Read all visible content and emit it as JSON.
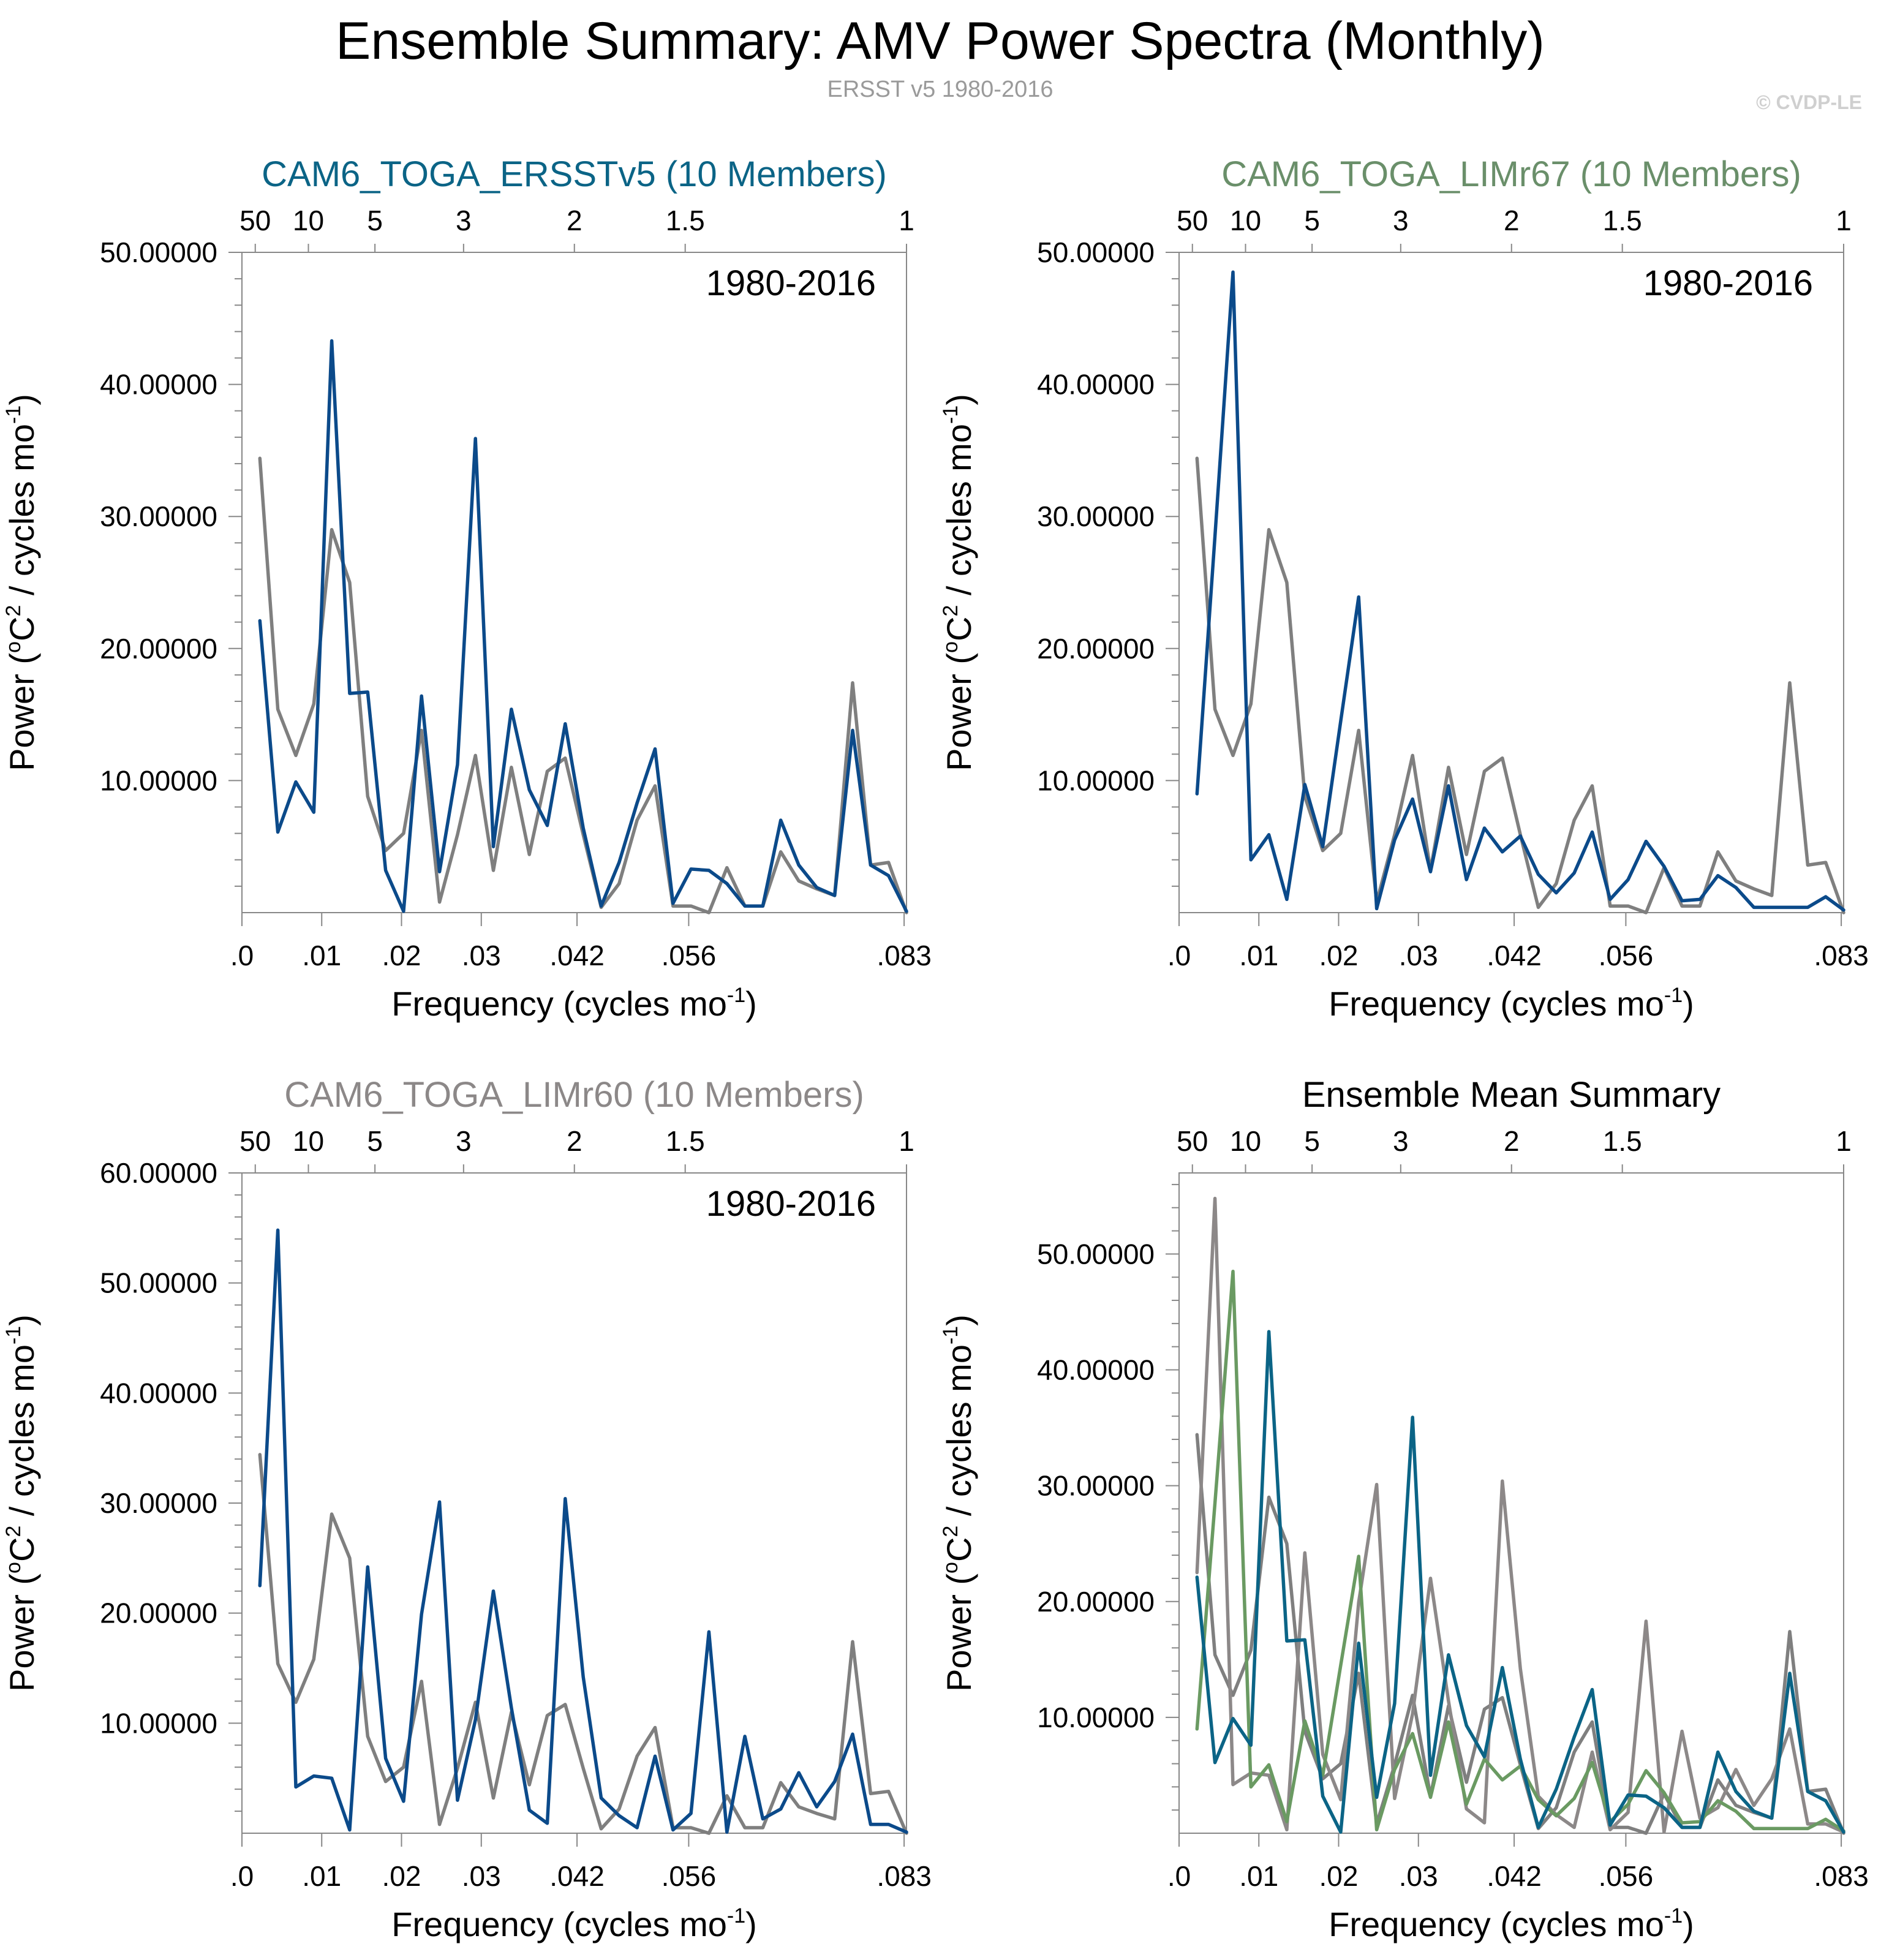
{
  "figure": {
    "title": "Ensemble Summary: AMV Power Spectra (Monthly)",
    "subtitle": "ERSST v5 1980-2016",
    "copyright": "© CVDP-LE"
  },
  "colors": {
    "obs": "#7f7f7f",
    "ersstv5": "#0b4a8a",
    "ersstv5_title": "#0b6486",
    "limr67_title": "#6a8f6a",
    "limr60_title": "#8c8888",
    "mean_ersst": "#0b6486",
    "mean_limr67": "#6a9a62",
    "mean_limr60": "#8c8888",
    "mean_obs": "#7f7f7f",
    "black": "#000000"
  },
  "chart_data": [
    {
      "id": "ersstv5",
      "type": "line",
      "title": "CAM6_TOGA_ERSSTv5 (10 Members)",
      "title_color_key": "ersstv5_title",
      "period_label": "1980-2016",
      "xlabel": "Frequency (cycles mo",
      "xlabel_sup": "-1",
      "xlabel_end": ")",
      "ylabel": "Power (",
      "ylabel_sup1": "o",
      "ylabel_mid": "C",
      "ylabel_sup2": "2",
      "ylabel_mid2": " / cycles mo",
      "ylabel_sup3": "-1",
      "ylabel_end": ")",
      "xlim": [
        0,
        0.0833
      ],
      "ylim": [
        0,
        50
      ],
      "yticks": [
        10,
        20,
        30,
        40,
        50
      ],
      "yticks_labels": [
        "10.00000",
        "20.00000",
        "30.00000",
        "40.00000",
        "50.00000"
      ],
      "xticks": [
        0,
        0.01,
        0.02,
        0.03,
        0.042,
        0.056,
        0.083
      ],
      "xticks_labels": [
        ".0",
        ".01",
        ".02",
        ".03",
        ".042",
        ".056",
        ".083"
      ],
      "top_ticks": [
        0.00167,
        0.00833,
        0.01667,
        0.02778,
        0.04167,
        0.05556,
        0.0833
      ],
      "top_ticks_labels": [
        "50",
        "10",
        "5",
        "3",
        "2",
        "1.5",
        "1"
      ],
      "series": [
        {
          "name": "ERSST v5",
          "color_key": "obs",
          "values": [
            34.4,
            15.4,
            11.9,
            15.8,
            29.0,
            25.0,
            8.8,
            4.7,
            6.0,
            13.8,
            0.8,
            5.9,
            11.9,
            3.2,
            11.0,
            4.4,
            10.7,
            11.7,
            5.9,
            0.4,
            2.2,
            7.0,
            9.6,
            0.5,
            0.5,
            0.0,
            3.4,
            0.5,
            0.5,
            4.6,
            2.4,
            1.8,
            1.3,
            17.4,
            3.6,
            3.8,
            0.0
          ]
        },
        {
          "name": "CAM6_TOGA_ERSSTv5",
          "color_key": "ersstv5",
          "values": [
            22.1,
            6.1,
            9.9,
            7.6,
            43.3,
            16.6,
            16.7,
            3.2,
            0.1,
            16.4,
            3.1,
            11.2,
            35.9,
            5.0,
            15.4,
            9.3,
            6.6,
            14.3,
            6.4,
            0.5,
            3.8,
            8.3,
            12.4,
            0.7,
            3.3,
            3.2,
            2.2,
            0.5,
            0.5,
            7.0,
            3.6,
            1.9,
            1.3,
            13.8,
            3.6,
            2.8,
            0.1
          ]
        }
      ]
    },
    {
      "id": "limr67",
      "type": "line",
      "title": "CAM6_TOGA_LIMr67 (10 Members)",
      "title_color_key": "limr67_title",
      "period_label": "1980-2016",
      "xlabel": "Frequency (cycles mo",
      "xlabel_sup": "-1",
      "xlabel_end": ")",
      "ylabel": "Power (",
      "ylabel_sup1": "o",
      "ylabel_mid": "C",
      "ylabel_sup2": "2",
      "ylabel_mid2": " / cycles mo",
      "ylabel_sup3": "-1",
      "ylabel_end": ")",
      "xlim": [
        0,
        0.0833
      ],
      "ylim": [
        0,
        50
      ],
      "yticks": [
        10,
        20,
        30,
        40,
        50
      ],
      "yticks_labels": [
        "10.00000",
        "20.00000",
        "30.00000",
        "40.00000",
        "50.00000"
      ],
      "xticks": [
        0,
        0.01,
        0.02,
        0.03,
        0.042,
        0.056,
        0.083
      ],
      "xticks_labels": [
        ".0",
        ".01",
        ".02",
        ".03",
        ".042",
        ".056",
        ".083"
      ],
      "top_ticks": [
        0.00167,
        0.00833,
        0.01667,
        0.02778,
        0.04167,
        0.05556,
        0.0833
      ],
      "top_ticks_labels": [
        "50",
        "10",
        "5",
        "3",
        "2",
        "1.5",
        "1"
      ],
      "series": [
        {
          "name": "ERSST v5",
          "color_key": "obs",
          "values": [
            34.4,
            15.4,
            11.9,
            15.8,
            29.0,
            25.0,
            8.8,
            4.7,
            6.0,
            13.8,
            0.8,
            5.9,
            11.9,
            3.2,
            11.0,
            4.4,
            10.7,
            11.7,
            5.9,
            0.4,
            2.2,
            7.0,
            9.6,
            0.5,
            0.5,
            0.0,
            3.4,
            0.5,
            0.5,
            4.6,
            2.4,
            1.8,
            1.3,
            17.4,
            3.6,
            3.8,
            0.0
          ]
        },
        {
          "name": "CAM6_TOGA_LIMr67",
          "color_key": "ersstv5",
          "values": [
            9.0,
            28.5,
            48.5,
            4.0,
            5.9,
            1.0,
            9.7,
            5.0,
            14.5,
            23.9,
            0.3,
            5.5,
            8.6,
            3.1,
            9.6,
            2.5,
            6.4,
            4.6,
            5.8,
            2.9,
            1.5,
            3.0,
            6.1,
            1.0,
            2.5,
            5.4,
            3.5,
            0.9,
            1.0,
            2.8,
            1.9,
            0.4,
            0.4,
            0.4,
            0.4,
            1.2,
            0.2
          ]
        }
      ]
    },
    {
      "id": "limr60",
      "type": "line",
      "title": "CAM6_TOGA_LIMr60 (10 Members)",
      "title_color_key": "limr60_title",
      "period_label": "1980-2016",
      "xlabel": "Frequency (cycles mo",
      "xlabel_sup": "-1",
      "xlabel_end": ")",
      "ylabel": "Power (",
      "ylabel_sup1": "o",
      "ylabel_mid": "C",
      "ylabel_sup2": "2",
      "ylabel_mid2": " / cycles mo",
      "ylabel_sup3": "-1",
      "ylabel_end": ")",
      "xlim": [
        0,
        0.0833
      ],
      "ylim": [
        0,
        60
      ],
      "yticks": [
        10,
        20,
        30,
        40,
        50,
        60
      ],
      "yticks_labels": [
        "10.00000",
        "20.00000",
        "30.00000",
        "40.00000",
        "50.00000",
        "60.00000"
      ],
      "xticks": [
        0,
        0.01,
        0.02,
        0.03,
        0.042,
        0.056,
        0.083
      ],
      "xticks_labels": [
        ".0",
        ".01",
        ".02",
        ".03",
        ".042",
        ".056",
        ".083"
      ],
      "top_ticks": [
        0.00167,
        0.00833,
        0.01667,
        0.02778,
        0.04167,
        0.05556,
        0.0833
      ],
      "top_ticks_labels": [
        "50",
        "10",
        "5",
        "3",
        "2",
        "1.5",
        "1"
      ],
      "series": [
        {
          "name": "ERSST v5",
          "color_key": "obs",
          "values": [
            34.4,
            15.4,
            11.9,
            15.8,
            29.0,
            25.0,
            8.8,
            4.7,
            6.0,
            13.8,
            0.8,
            5.9,
            11.9,
            3.2,
            11.0,
            4.4,
            10.7,
            11.7,
            5.9,
            0.4,
            2.2,
            7.0,
            9.6,
            0.5,
            0.5,
            0.0,
            3.4,
            0.5,
            0.5,
            4.6,
            2.4,
            1.8,
            1.3,
            17.4,
            3.6,
            3.8,
            0.0
          ]
        },
        {
          "name": "CAM6_TOGA_LIMr60",
          "color_key": "ersstv5",
          "values": [
            22.5,
            54.8,
            4.2,
            5.2,
            5.0,
            0.3,
            24.2,
            6.8,
            2.9,
            19.9,
            30.1,
            3.0,
            10.3,
            22.0,
            11.4,
            2.1,
            0.9,
            30.4,
            14.2,
            3.2,
            1.6,
            0.5,
            7.0,
            0.3,
            1.8,
            18.3,
            0.1,
            8.8,
            1.3,
            2.2,
            5.5,
            2.4,
            4.7,
            9.0,
            0.8,
            0.8,
            0.1
          ]
        }
      ]
    },
    {
      "id": "ensmean",
      "type": "line",
      "title": "Ensemble Mean Summary",
      "title_color_key": "black",
      "period_label": "",
      "xlabel": "Frequency (cycles mo",
      "xlabel_sup": "-1",
      "xlabel_end": ")",
      "ylabel": "Power (",
      "ylabel_sup1": "o",
      "ylabel_mid": "C",
      "ylabel_sup2": "2",
      "ylabel_mid2": " / cycles mo",
      "ylabel_sup3": "-1",
      "ylabel_end": ")",
      "xlim": [
        0,
        0.0833
      ],
      "ylim": [
        0,
        57
      ],
      "yticks": [
        10,
        20,
        30,
        40,
        50
      ],
      "yticks_labels": [
        "10.00000",
        "20.00000",
        "30.00000",
        "40.00000",
        "50.00000"
      ],
      "xticks": [
        0,
        0.01,
        0.02,
        0.03,
        0.042,
        0.056,
        0.083
      ],
      "xticks_labels": [
        ".0",
        ".01",
        ".02",
        ".03",
        ".042",
        ".056",
        ".083"
      ],
      "top_ticks": [
        0.00167,
        0.00833,
        0.01667,
        0.02778,
        0.04167,
        0.05556,
        0.0833
      ],
      "top_ticks_labels": [
        "50",
        "10",
        "5",
        "3",
        "2",
        "1.5",
        "1"
      ],
      "series": [
        {
          "name": "ERSST v5",
          "color_key": "mean_obs",
          "values": [
            34.4,
            15.4,
            11.9,
            15.8,
            29.0,
            25.0,
            8.8,
            4.7,
            6.0,
            13.8,
            0.8,
            5.9,
            11.9,
            3.2,
            11.0,
            4.4,
            10.7,
            11.7,
            5.9,
            0.4,
            2.2,
            7.0,
            9.6,
            0.5,
            0.5,
            0.0,
            3.4,
            0.5,
            0.5,
            4.6,
            2.4,
            1.8,
            1.3,
            17.4,
            3.6,
            3.8,
            0.0
          ]
        },
        {
          "name": "CAM6_TOGA_LIMr60",
          "color_key": "mean_limr60",
          "values": [
            22.5,
            54.8,
            4.2,
            5.2,
            5.0,
            0.3,
            24.2,
            6.8,
            2.9,
            19.9,
            30.1,
            3.0,
            10.3,
            22.0,
            11.4,
            2.1,
            0.9,
            30.4,
            14.2,
            3.2,
            1.6,
            0.5,
            7.0,
            0.3,
            1.8,
            18.3,
            0.1,
            8.8,
            1.3,
            2.2,
            5.5,
            2.4,
            4.7,
            9.0,
            0.8,
            0.8,
            0.1
          ]
        },
        {
          "name": "CAM6_TOGA_LIMr67",
          "color_key": "mean_limr67",
          "values": [
            9.0,
            28.5,
            48.5,
            4.0,
            5.9,
            1.0,
            9.7,
            5.0,
            14.5,
            23.9,
            0.3,
            5.5,
            8.6,
            3.1,
            9.6,
            2.5,
            6.4,
            4.6,
            5.8,
            2.9,
            1.5,
            3.0,
            6.1,
            1.0,
            2.5,
            5.4,
            3.5,
            0.9,
            1.0,
            2.8,
            1.9,
            0.4,
            0.4,
            0.4,
            0.4,
            1.2,
            0.2
          ]
        },
        {
          "name": "CAM6_TOGA_ERSSTv5",
          "color_key": "mean_ersst",
          "values": [
            22.1,
            6.1,
            9.9,
            7.6,
            43.3,
            16.6,
            16.7,
            3.2,
            0.1,
            16.4,
            3.1,
            11.2,
            35.9,
            5.0,
            15.4,
            9.3,
            6.6,
            14.3,
            6.4,
            0.5,
            3.8,
            8.3,
            12.4,
            0.7,
            3.3,
            3.2,
            2.2,
            0.5,
            0.5,
            7.0,
            3.6,
            1.9,
            1.3,
            13.8,
            3.6,
            2.8,
            0.1
          ]
        }
      ]
    }
  ]
}
